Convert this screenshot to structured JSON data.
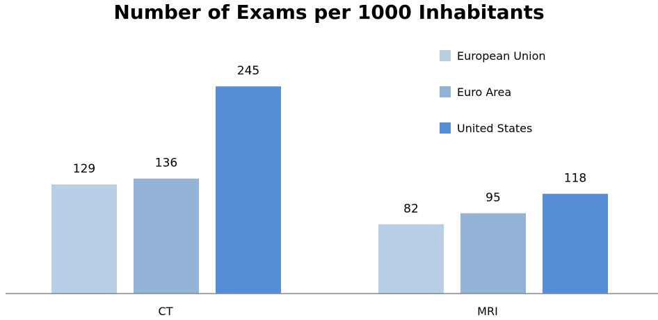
{
  "chart_data": {
    "type": "bar",
    "title": "Number of Exams per 1000 Inhabitants",
    "categories": [
      "CT",
      "MRI"
    ],
    "series": [
      {
        "name": "European Union",
        "values": [
          129,
          82
        ],
        "color": "#b9cde5"
      },
      {
        "name": "Euro Area",
        "values": [
          136,
          95
        ],
        "color": "#95b3d7"
      },
      {
        "name": "United States",
        "values": [
          245,
          118
        ],
        "color": "#558ed5"
      }
    ],
    "ylim": [
      0,
      260
    ],
    "grid": false,
    "legend": "top-right",
    "xlabel": "",
    "ylabel": ""
  }
}
